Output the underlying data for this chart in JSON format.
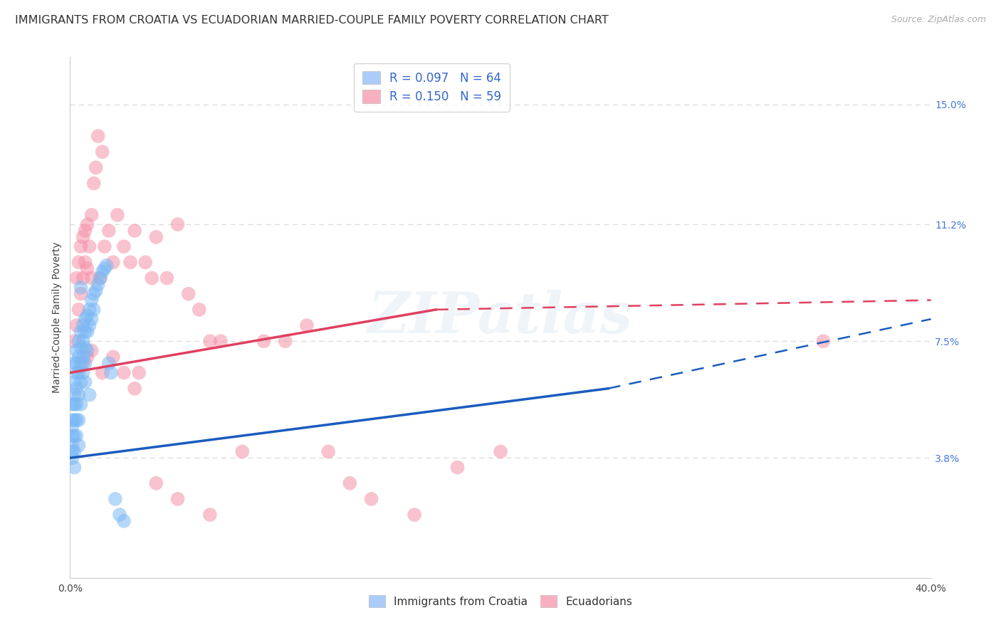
{
  "title": "IMMIGRANTS FROM CROATIA VS ECUADORIAN MARRIED-COUPLE FAMILY POVERTY CORRELATION CHART",
  "source": "Source: ZipAtlas.com",
  "ylabel": "Married-Couple Family Poverty",
  "xlim": [
    0.0,
    0.4
  ],
  "ylim": [
    0.0,
    0.165
  ],
  "xtick_positions": [
    0.0,
    0.1,
    0.2,
    0.3,
    0.4
  ],
  "xtick_labels": [
    "0.0%",
    "",
    "",
    "",
    "40.0%"
  ],
  "ytick_labels_right": [
    "15.0%",
    "11.2%",
    "7.5%",
    "3.8%"
  ],
  "ytick_positions_right": [
    0.15,
    0.112,
    0.075,
    0.038
  ],
  "croatia_color": "#7ab8f5",
  "ecuador_color": "#f590a8",
  "croatia_line_color": "#1a5cbf",
  "ecuador_line_color": "#e04060",
  "grid_color": "#dddddd",
  "bg_color": "#ffffff",
  "watermark": "ZIPatlas",
  "title_fontsize": 11.5,
  "source_fontsize": 9,
  "right_tick_color": "#4477dd",
  "scatter_size": 200,
  "scatter_alpha": 0.55,
  "croatia_line_y0": 0.038,
  "croatia_line_y_end_solid": 0.06,
  "croatia_line_x_solid_end": 0.25,
  "croatia_line_y_end_dash": 0.082,
  "ecuador_line_y0": 0.065,
  "ecuador_line_y_end_solid": 0.085,
  "ecuador_line_x_solid_end": 0.17,
  "ecuador_line_y_end_dash": 0.088,
  "croatia_x": [
    0.001,
    0.001,
    0.001,
    0.001,
    0.001,
    0.001,
    0.001,
    0.002,
    0.002,
    0.002,
    0.002,
    0.002,
    0.002,
    0.002,
    0.002,
    0.003,
    0.003,
    0.003,
    0.003,
    0.003,
    0.003,
    0.003,
    0.004,
    0.004,
    0.004,
    0.004,
    0.004,
    0.004,
    0.005,
    0.005,
    0.005,
    0.005,
    0.005,
    0.006,
    0.006,
    0.006,
    0.006,
    0.007,
    0.007,
    0.007,
    0.007,
    0.007,
    0.008,
    0.008,
    0.008,
    0.009,
    0.009,
    0.01,
    0.01,
    0.011,
    0.011,
    0.012,
    0.013,
    0.014,
    0.015,
    0.016,
    0.017,
    0.019,
    0.021,
    0.023,
    0.025,
    0.005,
    0.009,
    0.018
  ],
  "croatia_y": [
    0.055,
    0.05,
    0.048,
    0.045,
    0.042,
    0.04,
    0.038,
    0.068,
    0.062,
    0.058,
    0.055,
    0.05,
    0.045,
    0.04,
    0.035,
    0.072,
    0.068,
    0.065,
    0.06,
    0.055,
    0.05,
    0.045,
    0.075,
    0.07,
    0.065,
    0.058,
    0.05,
    0.042,
    0.078,
    0.073,
    0.068,
    0.062,
    0.055,
    0.08,
    0.075,
    0.07,
    0.065,
    0.082,
    0.078,
    0.073,
    0.068,
    0.062,
    0.083,
    0.078,
    0.072,
    0.085,
    0.08,
    0.088,
    0.082,
    0.09,
    0.085,
    0.091,
    0.093,
    0.095,
    0.097,
    0.098,
    0.099,
    0.065,
    0.025,
    0.02,
    0.018,
    0.092,
    0.058,
    0.068
  ],
  "ecuador_x": [
    0.002,
    0.003,
    0.003,
    0.004,
    0.004,
    0.005,
    0.005,
    0.006,
    0.006,
    0.007,
    0.007,
    0.008,
    0.008,
    0.009,
    0.01,
    0.01,
    0.011,
    0.012,
    0.013,
    0.014,
    0.015,
    0.016,
    0.018,
    0.02,
    0.022,
    0.025,
    0.028,
    0.03,
    0.032,
    0.035,
    0.038,
    0.04,
    0.045,
    0.05,
    0.055,
    0.06,
    0.065,
    0.07,
    0.08,
    0.09,
    0.1,
    0.11,
    0.12,
    0.13,
    0.14,
    0.16,
    0.18,
    0.2,
    0.006,
    0.008,
    0.01,
    0.015,
    0.02,
    0.025,
    0.03,
    0.04,
    0.05,
    0.065,
    0.35
  ],
  "ecuador_y": [
    0.075,
    0.095,
    0.08,
    0.1,
    0.085,
    0.105,
    0.09,
    0.108,
    0.095,
    0.11,
    0.1,
    0.112,
    0.098,
    0.105,
    0.115,
    0.095,
    0.125,
    0.13,
    0.14,
    0.095,
    0.135,
    0.105,
    0.11,
    0.1,
    0.115,
    0.105,
    0.1,
    0.11,
    0.065,
    0.1,
    0.095,
    0.108,
    0.095,
    0.112,
    0.09,
    0.085,
    0.075,
    0.075,
    0.04,
    0.075,
    0.075,
    0.08,
    0.04,
    0.03,
    0.025,
    0.02,
    0.035,
    0.04,
    0.068,
    0.07,
    0.072,
    0.065,
    0.07,
    0.065,
    0.06,
    0.03,
    0.025,
    0.02,
    0.075
  ]
}
